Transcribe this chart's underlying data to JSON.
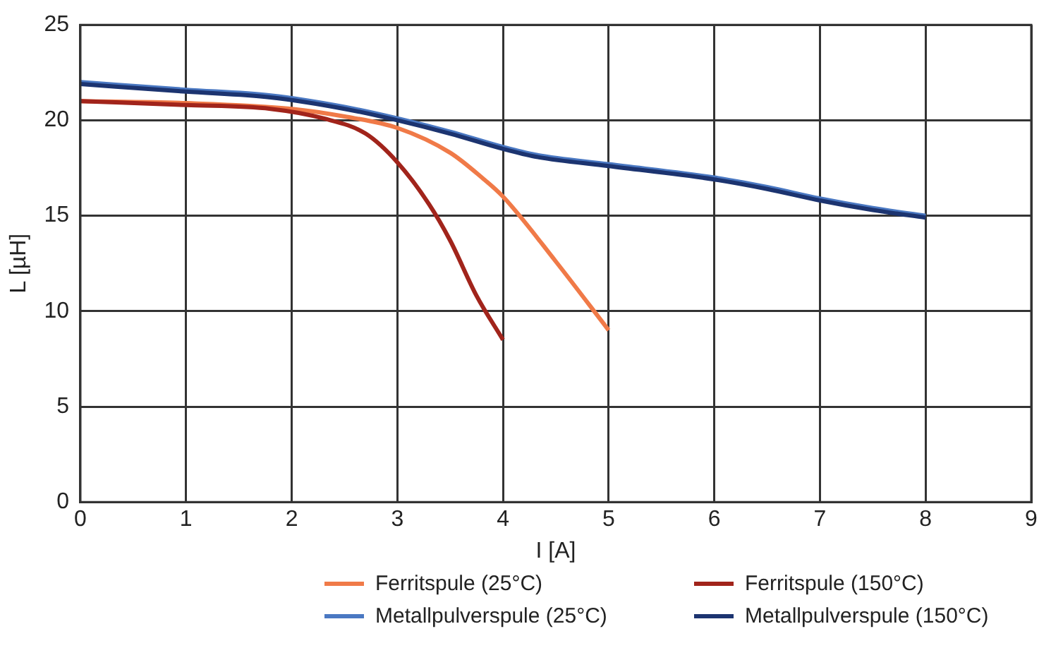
{
  "chart_data": {
    "type": "line",
    "xlabel": "I [A]",
    "ylabel": "L [µH]",
    "xlim": [
      0,
      9
    ],
    "xticks": [
      0,
      1,
      2,
      3,
      4,
      5,
      6,
      7,
      8,
      9
    ],
    "ylim": [
      0,
      25
    ],
    "yticks": [
      0,
      5,
      10,
      15,
      20,
      25
    ],
    "grid": true,
    "legend": "bottom",
    "marker": "none",
    "line_style": "solid",
    "series": [
      {
        "name": "Ferritspule (25°C)",
        "color": "#f07a48",
        "x": [
          0,
          1,
          2,
          2.5,
          3,
          3.5,
          3.8,
          4,
          4.5,
          5
        ],
        "values": [
          21,
          20.9,
          20.6,
          20.2,
          19.6,
          18.3,
          17.0,
          16.0,
          12.6,
          9.0
        ]
      },
      {
        "name": "Ferritspule (150°C)",
        "color": "#a1241b",
        "x": [
          0,
          1,
          1.8,
          2.3,
          2.7,
          3,
          3.3,
          3.5,
          3.75,
          4
        ],
        "values": [
          21,
          20.8,
          20.6,
          20.1,
          19.3,
          17.8,
          15.6,
          13.7,
          10.8,
          8.5
        ]
      },
      {
        "name": "Metallpulverspule (25°C)",
        "color": "#4a78c2",
        "x": [
          0,
          1,
          1.8,
          2.5,
          3,
          3.5,
          4,
          4.3,
          5,
          6,
          6.5,
          7,
          7.5,
          8
        ],
        "values": [
          22.0,
          21.6,
          21.3,
          20.7,
          20.1,
          19.4,
          18.6,
          18.2,
          17.7,
          17.0,
          16.5,
          15.9,
          15.4,
          15.0
        ]
      },
      {
        "name": "Metallpulverspule (150°C)",
        "color": "#1c3470",
        "x": [
          0,
          1,
          1.8,
          2.5,
          3,
          3.5,
          4,
          4.3,
          5,
          6,
          6.5,
          7,
          7.5,
          8
        ],
        "values": [
          21.9,
          21.5,
          21.2,
          20.6,
          20.0,
          19.3,
          18.5,
          18.1,
          17.6,
          16.9,
          16.4,
          15.8,
          15.3,
          14.9
        ]
      }
    ]
  }
}
